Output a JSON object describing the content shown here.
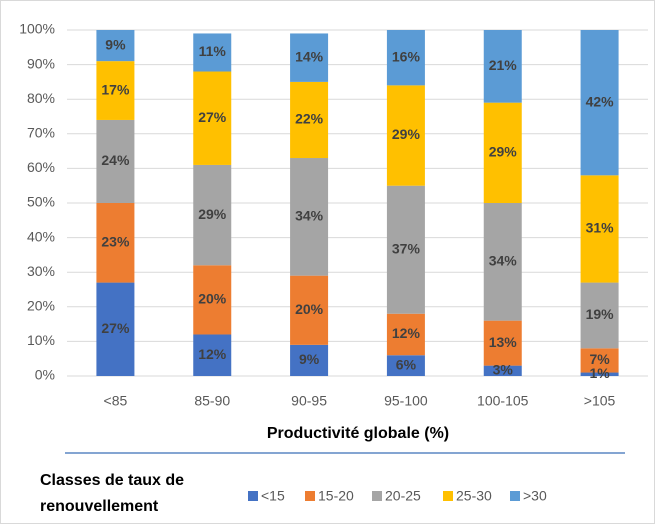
{
  "chart_data": {
    "type": "stacked_bar",
    "categories": [
      "<85",
      "85-90",
      "90-95",
      "95-100",
      "100-105",
      ">105"
    ],
    "series": [
      {
        "name": "<15",
        "color": "#4472c4",
        "values": [
          27,
          12,
          9,
          6,
          3,
          1
        ],
        "value_labels": [
          "27%",
          "12%",
          "9%",
          "6%",
          "3%",
          "1%"
        ]
      },
      {
        "name": "15-20",
        "color": "#ed7d31",
        "values": [
          23,
          20,
          20,
          12,
          13,
          7
        ],
        "value_labels": [
          "23%",
          "20%",
          "20%",
          "12%",
          "13%",
          "7%"
        ]
      },
      {
        "name": "20-25",
        "color": "#a5a5a5",
        "values": [
          24,
          29,
          34,
          37,
          34,
          19
        ],
        "value_labels": [
          "24%",
          "29%",
          "34%",
          "37%",
          "34%",
          "19%"
        ]
      },
      {
        "name": "25-30",
        "color": "#ffc000",
        "values": [
          17,
          27,
          22,
          29,
          29,
          31
        ],
        "value_labels": [
          "17%",
          "27%",
          "22%",
          "29%",
          "29%",
          "31%"
        ]
      },
      {
        "name": ">30",
        "color": "#5b9bd5",
        "values": [
          9,
          11,
          14,
          16,
          21,
          42
        ],
        "value_labels": [
          "9%",
          "11%",
          "14%",
          "16%",
          "21%",
          "42%"
        ]
      }
    ],
    "x_label": "Productivité globale (%)",
    "legend_title": [
      "Classes de taux de",
      "renouvellement"
    ],
    "ylim": [
      0,
      100
    ],
    "yticks": [
      {
        "value": 0,
        "label": "0%"
      },
      {
        "value": 10,
        "label": "10%"
      },
      {
        "value": 20,
        "label": "20%"
      },
      {
        "value": 30,
        "label": "30%"
      },
      {
        "value": 40,
        "label": "40%"
      },
      {
        "value": 50,
        "label": "50%"
      },
      {
        "value": 60,
        "label": "60%"
      },
      {
        "value": 70,
        "label": "70%"
      },
      {
        "value": 80,
        "label": "80%"
      },
      {
        "value": 90,
        "label": "90%"
      },
      {
        "value": 100,
        "label": "100%"
      }
    ],
    "grid": true,
    "legend": "bottom"
  }
}
